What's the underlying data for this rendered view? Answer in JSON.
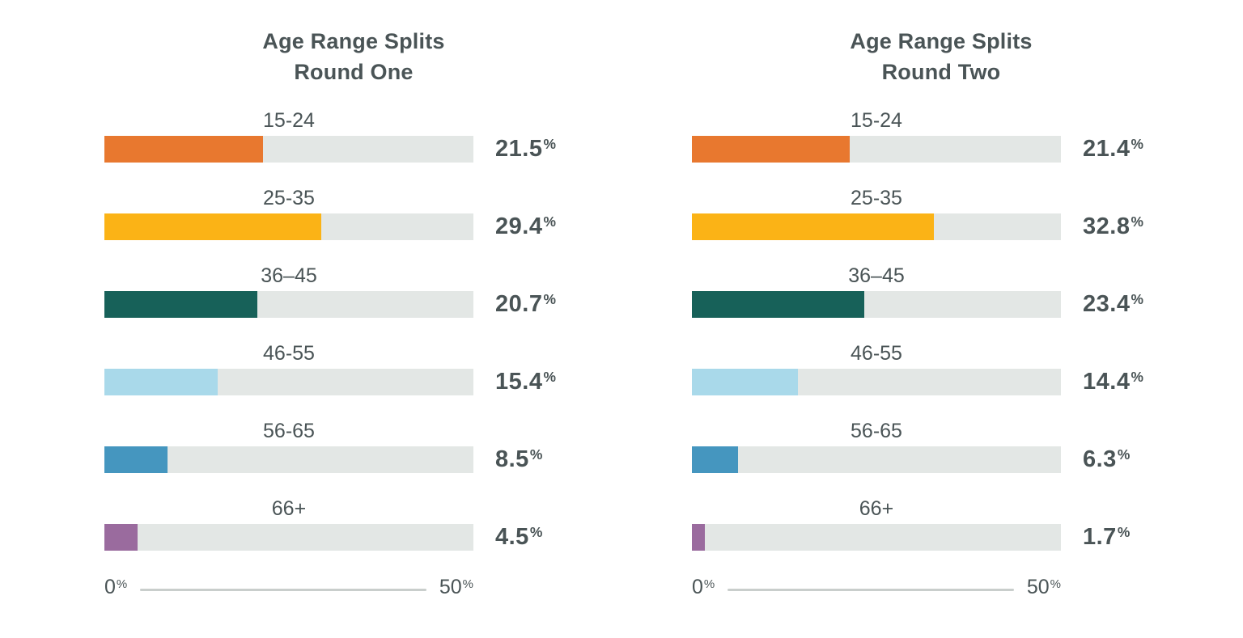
{
  "page": {
    "background_color": "#ffffff",
    "text_color": "#4A5456",
    "track_color": "#E3E7E5",
    "axis_line_color": "#C9CECC"
  },
  "axis": {
    "min_label": "0",
    "max_label": "50",
    "unit": "%"
  },
  "chart_data": [
    {
      "type": "bar",
      "orientation": "horizontal",
      "title": "Age Range Splits Round One",
      "title_lines": [
        "Age Range Splits",
        "Round One"
      ],
      "categories": [
        "15-24",
        "25-35",
        "36–45",
        "46-55",
        "56-65",
        "66+"
      ],
      "values": [
        21.5,
        29.4,
        20.7,
        15.4,
        8.5,
        4.5
      ],
      "unit": "%",
      "xlabel": "",
      "ylabel": "",
      "xlim": [
        0,
        50
      ],
      "grid": false,
      "legend": "none",
      "colors": [
        "#E8782F",
        "#FBB316",
        "#176159",
        "#A9D9EA",
        "#4596BF",
        "#9A6B9E"
      ]
    },
    {
      "type": "bar",
      "orientation": "horizontal",
      "title": "Age Range Splits Round Two",
      "title_lines": [
        "Age Range Splits",
        "Round Two"
      ],
      "categories": [
        "15-24",
        "25-35",
        "36–45",
        "46-55",
        "56-65",
        "66+"
      ],
      "values": [
        21.4,
        32.8,
        23.4,
        14.4,
        6.3,
        1.7
      ],
      "unit": "%",
      "xlabel": "",
      "ylabel": "",
      "xlim": [
        0,
        50
      ],
      "grid": false,
      "legend": "none",
      "colors": [
        "#E8782F",
        "#FBB316",
        "#176159",
        "#A9D9EA",
        "#4596BF",
        "#9A6B9E"
      ]
    }
  ]
}
